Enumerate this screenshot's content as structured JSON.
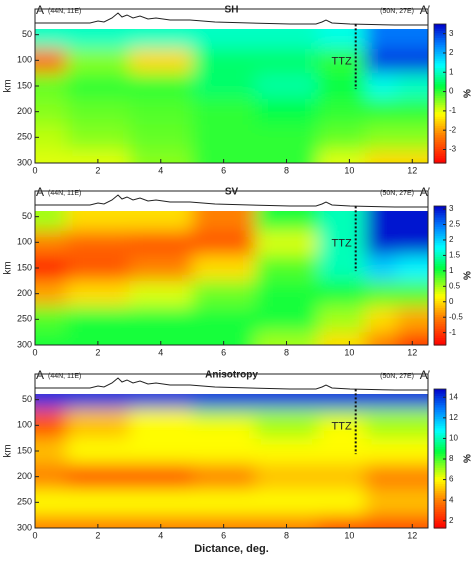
{
  "chart_data": [
    {
      "type": "heatmap",
      "title": "SH",
      "left_label": "A",
      "left_coord": "(44N, 11E)",
      "right_coord": "(50N, 27E)",
      "right_label": "A′",
      "annotation": "TTZ",
      "ylabel": "km",
      "clabel": "%",
      "xlim": [
        0,
        12.5
      ],
      "xticks": [
        0,
        2,
        4,
        6,
        8,
        10,
        12
      ],
      "ylim": [
        0,
        300
      ],
      "yticks": [
        50,
        100,
        150,
        200,
        250,
        300
      ],
      "clim": [
        -3.7,
        3.5
      ],
      "cticks": [
        -3,
        -2,
        -1,
        0,
        1,
        2,
        3
      ],
      "x": [
        0,
        2,
        4,
        6,
        8,
        10,
        11,
        12
      ],
      "depth": [
        55,
        100,
        150,
        200,
        250,
        300
      ],
      "values": [
        [
          1,
          1,
          1,
          1,
          1,
          1.2,
          2.5,
          2.5
        ],
        [
          -2.5,
          -0.5,
          -1.5,
          0.5,
          0.5,
          0,
          3,
          3
        ],
        [
          -0.3,
          0,
          0,
          0.5,
          0.8,
          0.3,
          1.2,
          1
        ],
        [
          -0.5,
          -0.3,
          -0.2,
          0,
          0.3,
          0,
          0,
          0
        ],
        [
          -0.8,
          -0.5,
          -0.3,
          0,
          0,
          -0.3,
          -0.5,
          -0.5
        ],
        [
          -1,
          -1,
          -0.5,
          0,
          0,
          -1,
          -1.5,
          -1.5
        ]
      ]
    },
    {
      "type": "heatmap",
      "title": "SV",
      "left_label": "A",
      "left_coord": "(44N, 11E)",
      "right_coord": "(50N, 27E)",
      "right_label": "A′",
      "annotation": "TTZ",
      "ylabel": "km",
      "clabel": "%",
      "xlim": [
        0,
        12.5
      ],
      "xticks": [
        0,
        2,
        4,
        6,
        8,
        10,
        12
      ],
      "ylim": [
        0,
        300
      ],
      "yticks": [
        50,
        100,
        150,
        200,
        250,
        300
      ],
      "clim": [
        -1.4,
        3.1
      ],
      "cticks": [
        -1,
        -0.5,
        0,
        0.5,
        1,
        1.5,
        2,
        2.5,
        3
      ],
      "x": [
        0,
        2,
        4,
        6,
        8,
        10,
        11,
        12
      ],
      "depth": [
        55,
        100,
        150,
        200,
        250,
        300
      ],
      "values": [
        [
          0.5,
          0,
          0,
          -0.5,
          1,
          1.5,
          3,
          3
        ],
        [
          -0.5,
          -0.7,
          -0.8,
          -0.8,
          0.3,
          1.5,
          3,
          3
        ],
        [
          -1.2,
          -0.8,
          -0.5,
          0,
          0.8,
          1.5,
          2,
          1.8
        ],
        [
          -0.3,
          0,
          0.3,
          0.7,
          1,
          1,
          0.8,
          0.8
        ],
        [
          0.8,
          1,
          1,
          1,
          1,
          0.5,
          0,
          -0.3
        ],
        [
          1,
          1,
          1,
          1,
          0.5,
          0,
          -0.5,
          -1
        ]
      ]
    },
    {
      "type": "heatmap",
      "title": "Anisotropy",
      "left_label": "A",
      "left_coord": "(44N, 11E)",
      "right_coord": "(50N, 27E)",
      "right_label": "A′",
      "annotation": "TTZ",
      "ylabel": "km",
      "clabel": "%",
      "xlabel": "Dictance, deg.",
      "xlim": [
        0,
        12.5
      ],
      "xticks": [
        0,
        2,
        4,
        6,
        8,
        10,
        12
      ],
      "ylim": [
        0,
        300
      ],
      "yticks": [
        50,
        100,
        150,
        200,
        250,
        300
      ],
      "clim": [
        1.3,
        14.8
      ],
      "cticks": [
        2,
        4,
        6,
        8,
        10,
        12,
        14
      ],
      "x": [
        0,
        2,
        4,
        6,
        8,
        10,
        11,
        12
      ],
      "depth": [
        55,
        80,
        100,
        150,
        200,
        250,
        300
      ],
      "values": [
        [
          14,
          14,
          14,
          14,
          14,
          14,
          14,
          14
        ],
        [
          3,
          5,
          6,
          7,
          7,
          7,
          7,
          7
        ],
        [
          3,
          5,
          6,
          6,
          7,
          6,
          7,
          7
        ],
        [
          5,
          6,
          6,
          6,
          6,
          6,
          6,
          6
        ],
        [
          4,
          3,
          3,
          4,
          5,
          5,
          4,
          4
        ],
        [
          6,
          6,
          6,
          6,
          6,
          6,
          5,
          5
        ],
        [
          4,
          4,
          4,
          4,
          4,
          3,
          3,
          3
        ]
      ]
    }
  ]
}
